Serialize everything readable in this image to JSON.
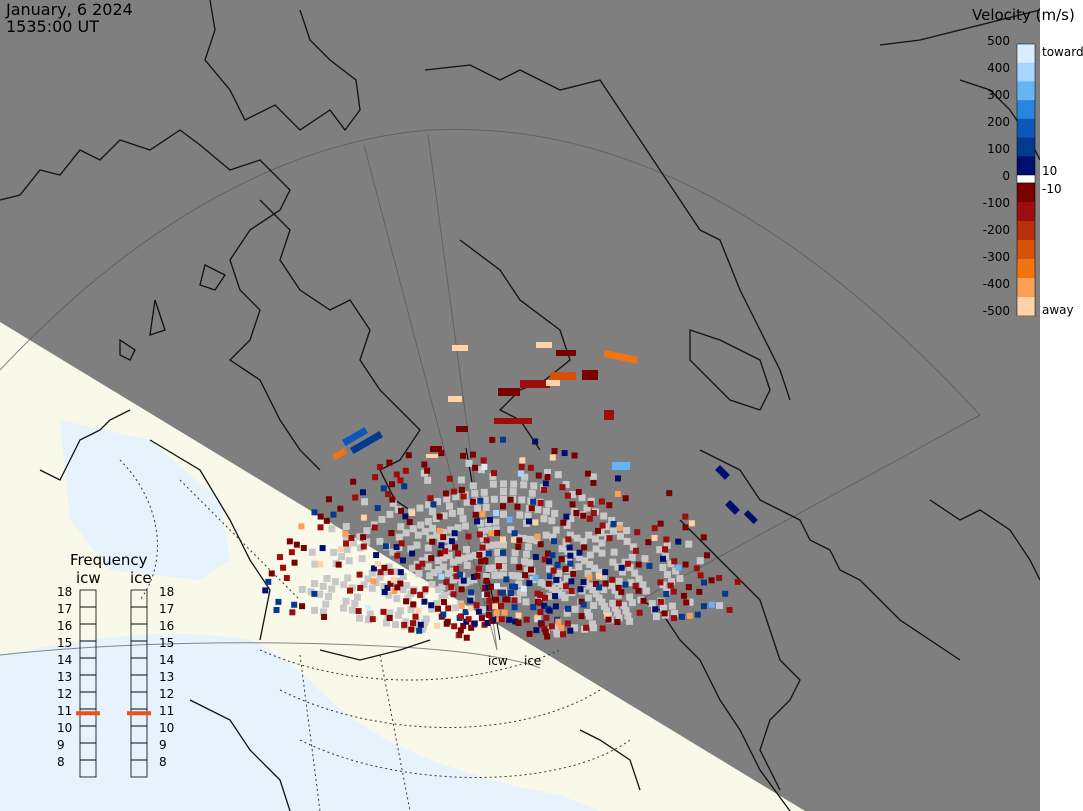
{
  "header": {
    "date": "January, 6 2024",
    "time": "1535:00 UT"
  },
  "velocity_scale": {
    "title": "Velocity (m/s)",
    "ticks": [
      "500",
      "400",
      "300",
      "200",
      "100",
      "0",
      "-100",
      "-200",
      "-300",
      "-400",
      "-500"
    ],
    "mid_labels": [
      "10",
      "-10"
    ],
    "toward_label": "toward",
    "away_label": "away",
    "colors_toward": [
      "#d8eeff",
      "#a6d6ff",
      "#64b4f6",
      "#2a86dc",
      "#0b58b8",
      "#023a8f",
      "#000e6e"
    ],
    "colors_away": [
      "#7a0000",
      "#9e0d0d",
      "#b82f0a",
      "#d85005",
      "#f07510",
      "#fb9f55",
      "#ffd2a8"
    ]
  },
  "frequency_panel": {
    "title": "Frequency",
    "columns": [
      {
        "label": "icw",
        "active_mhz": 10.75
      },
      {
        "label": "ice",
        "active_mhz": 10.75
      }
    ],
    "ticks": [
      "18",
      "17",
      "16",
      "15",
      "14",
      "13",
      "12",
      "11",
      "10",
      "9",
      "8"
    ]
  },
  "radar_sites": [
    {
      "label": "icw"
    },
    {
      "label": "ice"
    }
  ],
  "colors": {
    "night_side": "#7f7f7f",
    "day_side_land": "#f9f9ea",
    "day_side_ocean": "#e6f3fd",
    "ground_scatter": "#c8c8c8",
    "frequency_marker": "#f04e1d"
  }
}
